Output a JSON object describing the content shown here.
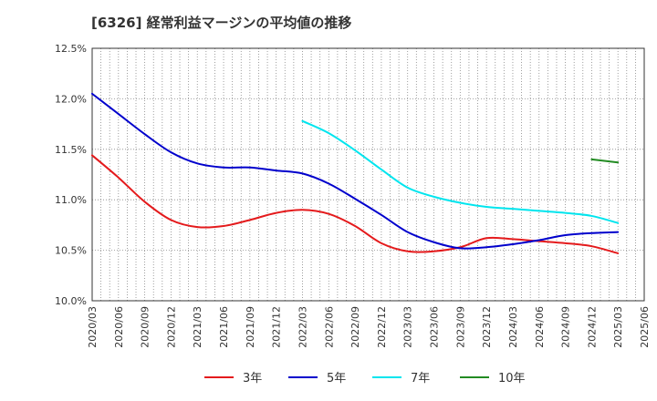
{
  "chart_data": {
    "type": "line",
    "title": "[6326]  経常利益マージンの平均値の推移",
    "xlabel": "",
    "ylabel": "",
    "ylim": [
      10.0,
      12.5
    ],
    "y_ticks": [
      "10.0%",
      "10.5%",
      "11.0%",
      "11.5%",
      "12.0%",
      "12.5%"
    ],
    "x_ticks": [
      "2020/03",
      "2020/06",
      "2020/09",
      "2020/12",
      "2021/03",
      "2021/06",
      "2021/09",
      "2021/12",
      "2022/03",
      "2022/06",
      "2022/09",
      "2022/12",
      "2023/03",
      "2023/06",
      "2023/09",
      "2023/12",
      "2024/03",
      "2024/06",
      "2024/09",
      "2024/12",
      "2025/03",
      "2025/06"
    ],
    "grid": true,
    "legend_position": "bottom",
    "series": [
      {
        "name": "3年",
        "color": "#e41a1c",
        "x": [
          "2020/03",
          "2020/06",
          "2020/09",
          "2020/12",
          "2021/03",
          "2021/06",
          "2021/09",
          "2021/12",
          "2022/03",
          "2022/06",
          "2022/09",
          "2022/12",
          "2023/03",
          "2023/06",
          "2023/09",
          "2023/12",
          "2024/03",
          "2024/06",
          "2024/09",
          "2024/12",
          "2025/03"
        ],
        "values": [
          11.44,
          11.22,
          10.98,
          10.8,
          10.73,
          10.74,
          10.8,
          10.87,
          10.9,
          10.86,
          10.74,
          10.57,
          10.49,
          10.49,
          10.53,
          10.62,
          10.61,
          10.59,
          10.57,
          10.54,
          10.47
        ]
      },
      {
        "name": "5年",
        "color": "#0000cc",
        "x": [
          "2020/03",
          "2020/06",
          "2020/09",
          "2020/12",
          "2021/03",
          "2021/06",
          "2021/09",
          "2021/12",
          "2022/03",
          "2022/06",
          "2022/09",
          "2022/12",
          "2023/03",
          "2023/06",
          "2023/09",
          "2023/12",
          "2024/03",
          "2024/06",
          "2024/09",
          "2024/12",
          "2025/03"
        ],
        "values": [
          12.05,
          11.85,
          11.65,
          11.47,
          11.36,
          11.32,
          11.32,
          11.29,
          11.26,
          11.16,
          11.01,
          10.85,
          10.68,
          10.58,
          10.52,
          10.53,
          10.56,
          10.6,
          10.65,
          10.67,
          10.68
        ]
      },
      {
        "name": "7年",
        "color": "#00e5ee",
        "x": [
          "2022/03",
          "2022/06",
          "2022/09",
          "2022/12",
          "2023/03",
          "2023/06",
          "2023/09",
          "2023/12",
          "2024/03",
          "2024/06",
          "2024/09",
          "2024/12",
          "2025/03"
        ],
        "values": [
          11.78,
          11.66,
          11.49,
          11.3,
          11.12,
          11.03,
          10.97,
          10.93,
          10.91,
          10.89,
          10.87,
          10.84,
          10.77
        ]
      },
      {
        "name": "10年",
        "color": "#228b22",
        "x": [
          "2024/12",
          "2025/03"
        ],
        "values": [
          11.4,
          11.37
        ]
      }
    ]
  }
}
